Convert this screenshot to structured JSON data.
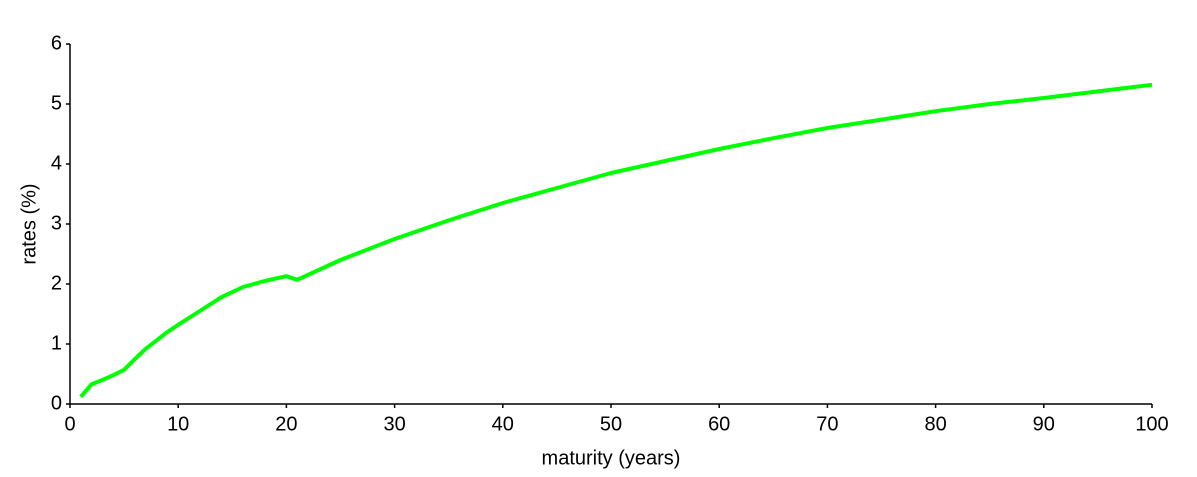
{
  "chart_data": {
    "type": "line",
    "x_label": "maturity (years)",
    "y_label": "rates (%)",
    "x": [
      1,
      2,
      3,
      4,
      5,
      6,
      7,
      8,
      9,
      10,
      12,
      14,
      16,
      18,
      20,
      21,
      25,
      30,
      35,
      40,
      45,
      50,
      55,
      60,
      65,
      70,
      75,
      80,
      85,
      90,
      95,
      100
    ],
    "series": [
      {
        "color": "#00ff00",
        "values": [
          0.12,
          0.33,
          0.4,
          0.48,
          0.57,
          0.75,
          0.92,
          1.06,
          1.2,
          1.32,
          1.55,
          1.78,
          1.95,
          2.05,
          2.13,
          2.07,
          2.4,
          2.75,
          3.06,
          3.35,
          3.6,
          3.85,
          4.05,
          4.25,
          4.43,
          4.6,
          4.74,
          4.88,
          5.0,
          5.1,
          5.21,
          5.32
        ]
      }
    ],
    "xlim": [
      0,
      100
    ],
    "ylim": [
      0,
      6
    ],
    "xticks": [
      0,
      10,
      20,
      30,
      40,
      50,
      60,
      70,
      80,
      90,
      100
    ],
    "yticks": [
      0,
      1,
      2,
      3,
      4,
      5,
      6
    ],
    "grid": false
  }
}
